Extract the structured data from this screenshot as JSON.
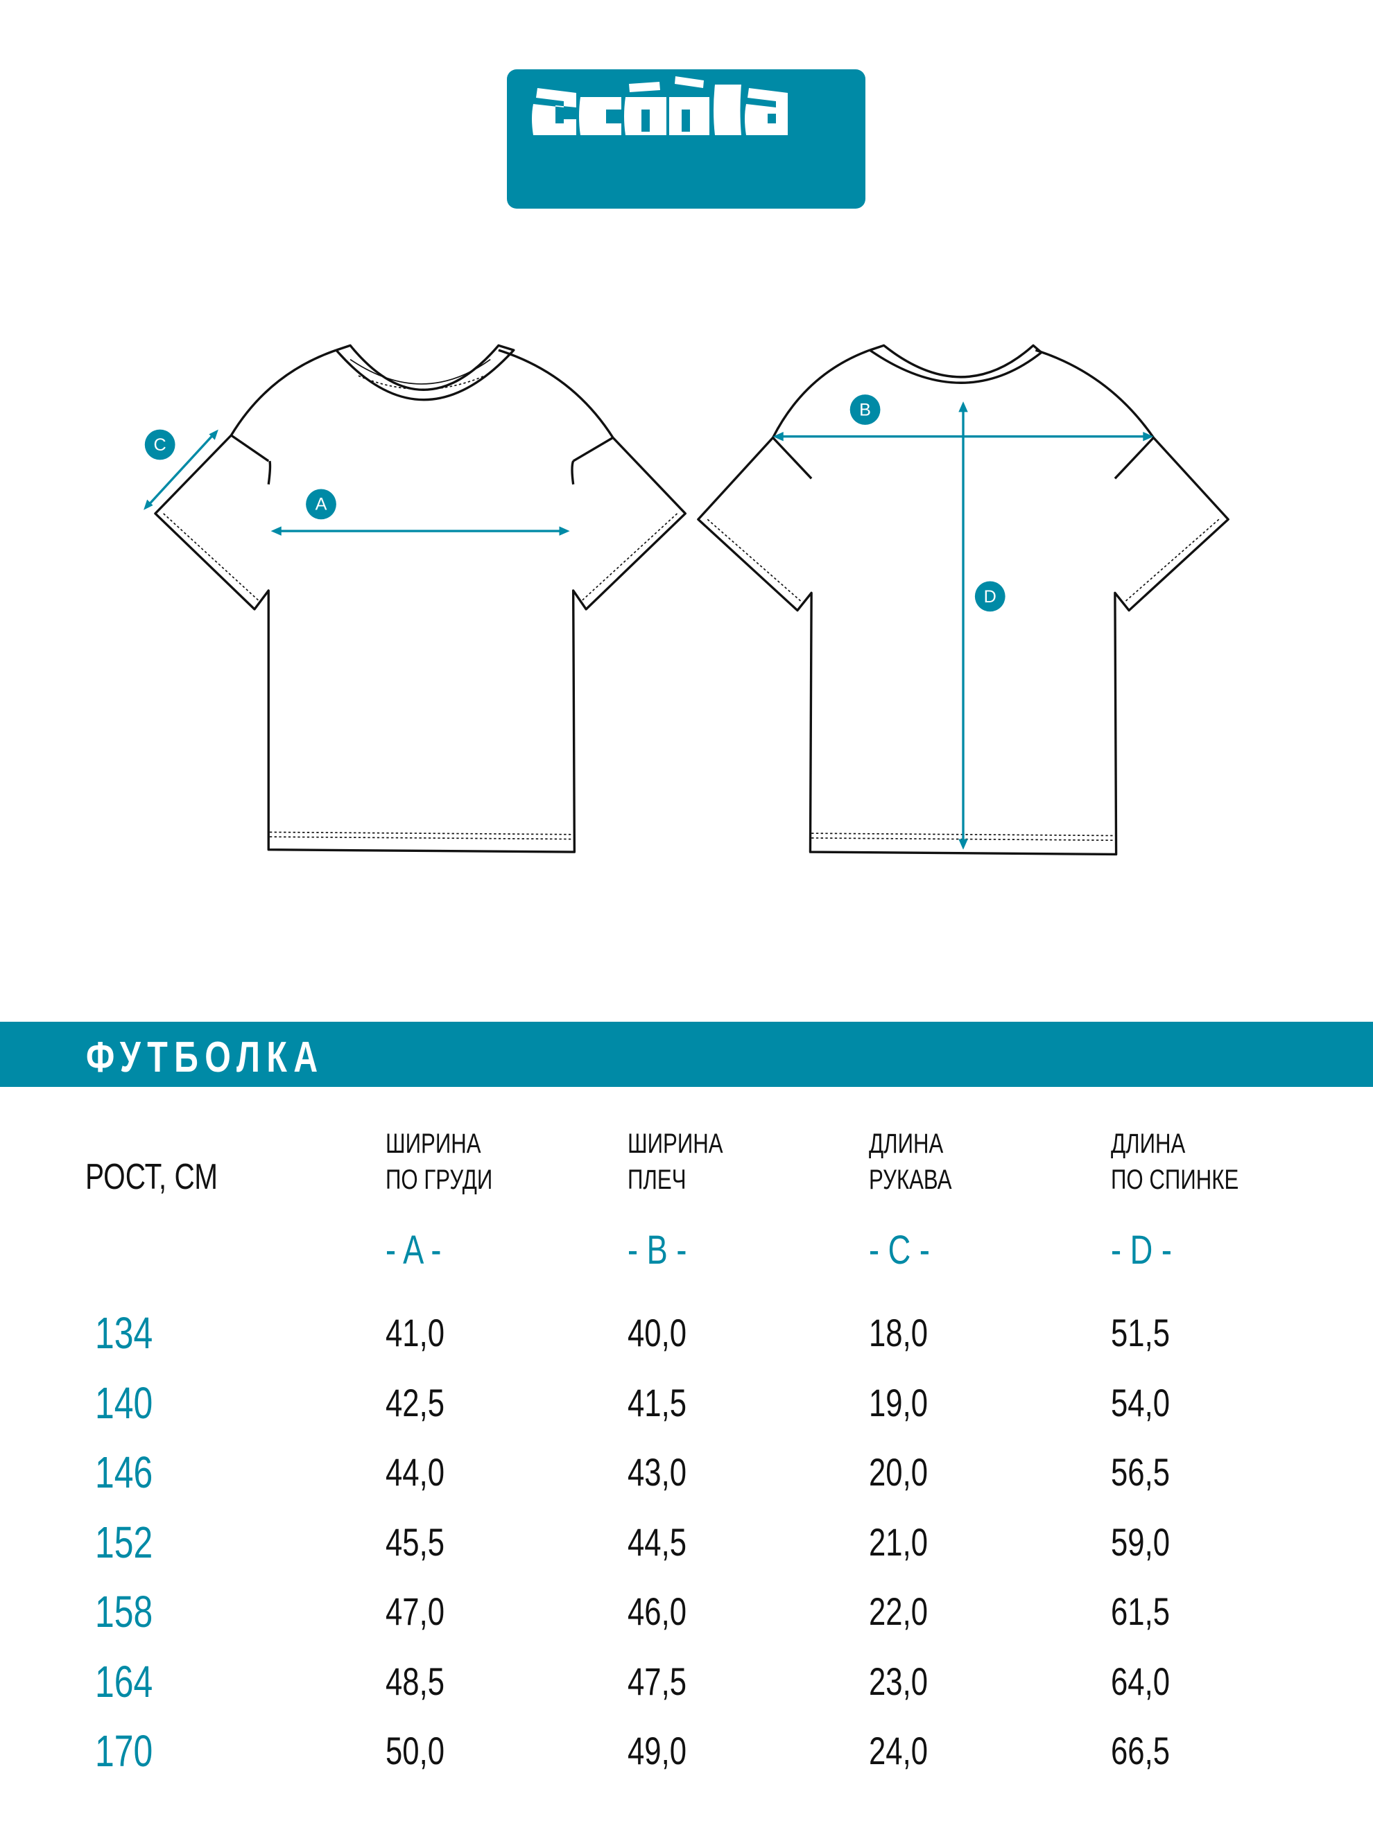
{
  "brand": {
    "logo_text": "acoola",
    "color": "#008aa6"
  },
  "diagram": {
    "labels": [
      "A",
      "B",
      "C",
      "D"
    ]
  },
  "product_title": "ФУТБОЛКА",
  "table": {
    "first_header": "РОСТ, СМ",
    "columns": [
      {
        "line1": "ШИРИНА",
        "line2": "ПО ГРУДИ",
        "code": "- A -"
      },
      {
        "line1": "ШИРИНА",
        "line2": "ПЛЕЧ",
        "code": "- B -"
      },
      {
        "line1": "ДЛИНА",
        "line2": "РУКАВА",
        "code": "- C -"
      },
      {
        "line1": "ДЛИНА",
        "line2": "ПО СПИНКЕ",
        "code": "- D -"
      }
    ],
    "rows": [
      {
        "height": "134",
        "values": [
          "41,0",
          "40,0",
          "18,0",
          "51,5"
        ]
      },
      {
        "height": "140",
        "values": [
          "42,5",
          "41,5",
          "19,0",
          "54,0"
        ]
      },
      {
        "height": "146",
        "values": [
          "44,0",
          "43,0",
          "20,0",
          "56,5"
        ]
      },
      {
        "height": "152",
        "values": [
          "45,5",
          "44,5",
          "21,0",
          "59,0"
        ]
      },
      {
        "height": "158",
        "values": [
          "47,0",
          "46,0",
          "22,0",
          "61,5"
        ]
      },
      {
        "height": "164",
        "values": [
          "48,5",
          "47,5",
          "23,0",
          "64,0"
        ]
      },
      {
        "height": "170",
        "values": [
          "50,0",
          "49,0",
          "24,0",
          "66,5"
        ]
      }
    ]
  }
}
